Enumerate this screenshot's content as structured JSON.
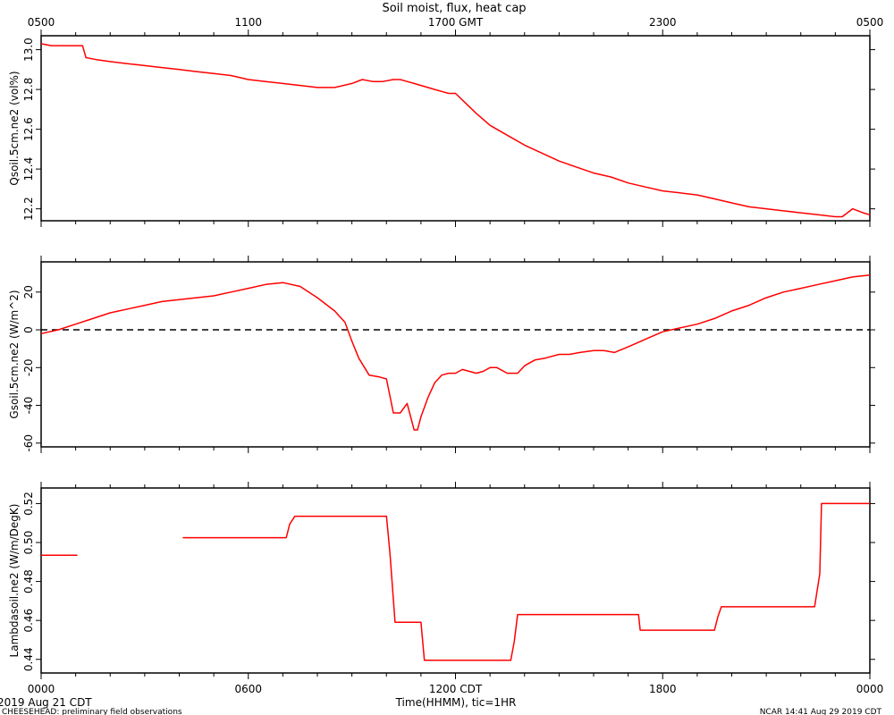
{
  "title": "Soil moist, flux, heat cap",
  "top_axis": {
    "tick_labels": [
      "0500",
      "1100",
      "1700 GMT",
      "2300",
      "0500"
    ],
    "tick_hours": [
      0,
      6,
      12,
      18,
      24
    ]
  },
  "bottom_axis": {
    "tick_labels": [
      "0000",
      "0600",
      "1200 CDT",
      "1800",
      "0000"
    ],
    "tick_hours": [
      0,
      6,
      12,
      18,
      24
    ],
    "label": "Time(HHMM), tic=1HR"
  },
  "start_date": "2019 Aug 21 CDT",
  "footer_left": "CHEESEHEAD: preliminary field observations",
  "footer_right": "NCAR 14:41 Aug 29 2019 CDT",
  "line_color": "#ff0000",
  "chart_data": [
    {
      "type": "line",
      "ylabel": "Qsoil.5cm.ne2 (vol%)",
      "ylim": [
        12.14,
        13.07
      ],
      "yticks": [
        12.2,
        12.4,
        12.6,
        12.8,
        13.0
      ],
      "ytick_labels": [
        "12.2",
        "12.4",
        "12.6",
        "12.8",
        "13.0"
      ],
      "zero_line": false,
      "x_hours": [
        0,
        0.3,
        0.6,
        1.0,
        1.2,
        1.3,
        1.6,
        2.0,
        2.5,
        3.0,
        3.5,
        4.0,
        4.5,
        5.0,
        5.5,
        6.0,
        6.5,
        7.0,
        7.5,
        8.0,
        8.5,
        9.0,
        9.3,
        9.6,
        9.9,
        10.2,
        10.4,
        10.6,
        10.8,
        11.0,
        11.2,
        11.4,
        11.6,
        11.8,
        12.0,
        12.3,
        12.6,
        13.0,
        13.5,
        14.0,
        14.5,
        15.0,
        15.5,
        16.0,
        16.5,
        17.0,
        17.5,
        18.0,
        18.5,
        19.0,
        19.5,
        20.0,
        20.5,
        21.0,
        21.5,
        22.0,
        22.5,
        23.0,
        23.2,
        23.5,
        23.8,
        24.0
      ],
      "y": [
        13.03,
        13.02,
        13.02,
        13.02,
        13.02,
        12.96,
        12.95,
        12.94,
        12.93,
        12.92,
        12.91,
        12.9,
        12.89,
        12.88,
        12.87,
        12.85,
        12.84,
        12.83,
        12.82,
        12.81,
        12.81,
        12.83,
        12.85,
        12.84,
        12.84,
        12.85,
        12.85,
        12.84,
        12.83,
        12.82,
        12.81,
        12.8,
        12.79,
        12.78,
        12.78,
        12.73,
        12.68,
        12.62,
        12.57,
        12.52,
        12.48,
        12.44,
        12.41,
        12.38,
        12.36,
        12.33,
        12.31,
        12.29,
        12.28,
        12.27,
        12.25,
        12.23,
        12.21,
        12.2,
        12.19,
        12.18,
        12.17,
        12.16,
        12.16,
        12.2,
        12.18,
        12.17
      ]
    },
    {
      "type": "line",
      "ylabel": "Gsoil.5cm.ne2 (W/m^2)",
      "ylim": [
        -62,
        36
      ],
      "yticks": [
        -60,
        -40,
        -20,
        0,
        20
      ],
      "ytick_labels": [
        "-60",
        "-40",
        "-20",
        "0",
        "20"
      ],
      "zero_line": true,
      "x_hours": [
        0,
        0.5,
        1.0,
        1.5,
        2.0,
        2.5,
        3.0,
        3.5,
        4.0,
        4.5,
        5.0,
        5.5,
        6.0,
        6.5,
        7.0,
        7.5,
        8.0,
        8.5,
        8.8,
        9.0,
        9.2,
        9.5,
        9.8,
        10.0,
        10.2,
        10.4,
        10.6,
        10.8,
        10.9,
        11.0,
        11.2,
        11.4,
        11.6,
        11.8,
        12.0,
        12.2,
        12.4,
        12.6,
        12.8,
        13.0,
        13.2,
        13.5,
        13.8,
        14.0,
        14.3,
        14.6,
        15.0,
        15.3,
        15.6,
        16.0,
        16.3,
        16.6,
        17.0,
        17.5,
        18.0,
        18.5,
        19.0,
        19.5,
        20.0,
        20.5,
        21.0,
        21.5,
        22.0,
        22.5,
        23.0,
        23.5,
        24.0
      ],
      "y": [
        -2,
        0,
        3,
        6,
        9,
        11,
        13,
        15,
        16,
        17,
        18,
        20,
        22,
        24,
        25,
        23,
        17,
        10,
        4,
        -6,
        -15,
        -24,
        -25,
        -26,
        -44,
        -44,
        -39,
        -53,
        -53,
        -46,
        -36,
        -28,
        -24,
        -23,
        -23,
        -21,
        -22,
        -23,
        -22,
        -20,
        -20,
        -23,
        -23,
        -19,
        -16,
        -15,
        -13,
        -13,
        -12,
        -11,
        -11,
        -12,
        -9,
        -5,
        -1,
        1,
        3,
        6,
        10,
        13,
        17,
        20,
        22,
        24,
        26,
        28,
        29
      ]
    },
    {
      "type": "line",
      "ylabel": "Lambdasoil.ne2 (W/m/DegK)",
      "ylim": [
        0.433,
        0.528
      ],
      "yticks": [
        0.44,
        0.46,
        0.48,
        0.5,
        0.52
      ],
      "ytick_labels": [
        "0.44",
        "0.46",
        "0.48",
        "0.50",
        "0.52"
      ],
      "zero_line": false,
      "segments": [
        {
          "x_hours": [
            0,
            1.05
          ],
          "y": [
            0.4935,
            0.4935
          ]
        },
        {
          "x_hours": [
            4.1,
            7.1,
            7.2,
            7.35,
            7.5,
            10.0,
            10.1,
            10.25,
            10.6,
            10.65,
            11.0,
            11.1,
            13.6,
            13.7,
            13.8,
            17.3,
            17.35,
            19.5,
            19.6,
            19.7,
            22.4,
            22.55,
            22.6,
            22.7,
            24.0
          ],
          "y": [
            0.5025,
            0.5025,
            0.5095,
            0.5135,
            0.5135,
            0.5135,
            0.495,
            0.459,
            0.459,
            0.459,
            0.459,
            0.4395,
            0.4395,
            0.449,
            0.463,
            0.463,
            0.455,
            0.455,
            0.462,
            0.467,
            0.467,
            0.484,
            0.52,
            0.52,
            0.52
          ]
        }
      ]
    }
  ]
}
